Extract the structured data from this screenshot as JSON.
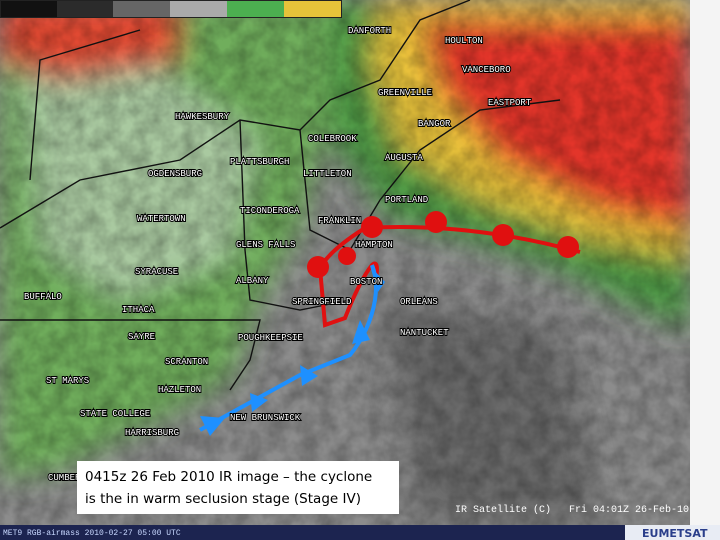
{
  "map": {
    "stations": [
      "DANFORTH",
      "HOULTON",
      "VANCEBORO",
      "GREENVILLE",
      "EASTPORT",
      "BANGOR",
      "HAWKESBURY",
      "COLEBROOK",
      "AUGUSTA",
      "PLATTSBURGH",
      "OGDENSBURG",
      "LITTLETON",
      "PORTLAND",
      "TICONDEROGA",
      "FRANKLIN",
      "WATERTOWN",
      "GLENS FALLS",
      "HAMPTON",
      "SYRACUSE",
      "ALBANY",
      "BOSTON",
      "BUFFALO",
      "SPRINGFIELD",
      "ORLEANS",
      "ITHACA",
      "NANTUCKET",
      "SAYRE",
      "POUGHKEEPSIE",
      "SCRANTON",
      "ST MARYS",
      "HAZLETON",
      "STATE COLLEGE",
      "NEW BRUNSWICK",
      "HARRISBURG",
      "CUMBERLAND"
    ],
    "caption": [
      "0415z 26 Feb 2010 IR image – the cyclone",
      "is the in warm seclusion stage (Stage IV)"
    ],
    "product": "IR Satellite (C)   Fri 04:01Z 26-Feb-10",
    "footer": "MET9 RGB-airmass 2010-02-27 05:00 UTC",
    "brand": "EUMETSAT"
  }
}
